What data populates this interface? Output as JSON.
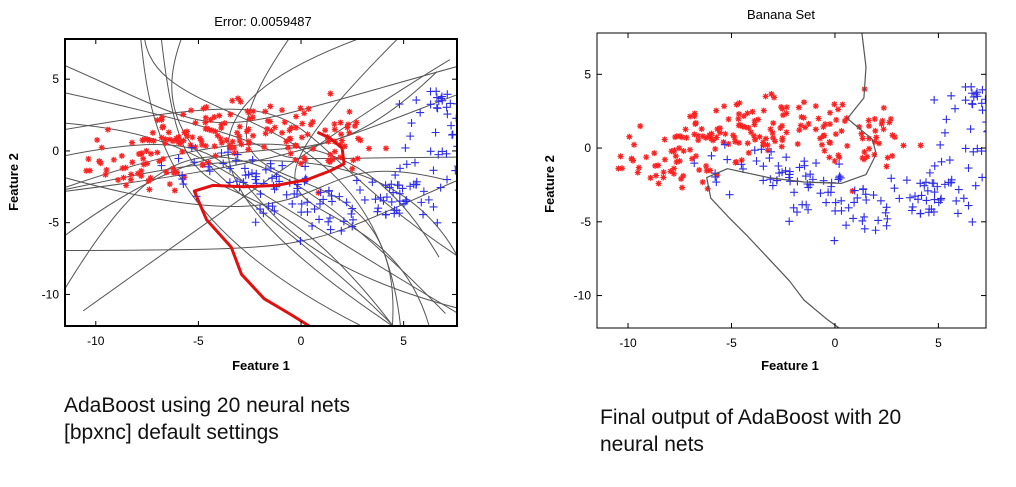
{
  "chart_data": [
    {
      "type": "scatter",
      "title": "Error: 0.0059487",
      "xlabel": "Feature 1",
      "ylabel": "Feature 2",
      "xlim": [
        -11.5,
        7.6
      ],
      "ylim": [
        -12.2,
        7.8
      ],
      "xticks": [
        -10,
        -5,
        0,
        5
      ],
      "yticks": [
        5,
        0,
        -5,
        -10
      ],
      "grid": false,
      "legend": "none",
      "series": [
        {
          "marker": "*",
          "color": "#ff2020",
          "class": "red"
        },
        {
          "marker": "+",
          "color": "#2e2ee8",
          "class": "blue"
        }
      ],
      "weak_boundaries": 20,
      "final_boundary": {
        "color": "#e01010",
        "points": [
          [
            0.8,
            1.3
          ],
          [
            1.4,
            0.9
          ],
          [
            2.0,
            0.2
          ],
          [
            2.1,
            -0.9
          ],
          [
            1.4,
            -1.4
          ],
          [
            0.3,
            -2.0
          ],
          [
            -1.2,
            -2.4
          ],
          [
            -2.8,
            -2.5
          ],
          [
            -4.3,
            -2.4
          ],
          [
            -5.2,
            -2.8
          ],
          [
            -4.6,
            -4.8
          ],
          [
            -3.4,
            -6.7
          ],
          [
            -2.9,
            -8.6
          ],
          [
            -1.8,
            -10.3
          ],
          [
            -0.5,
            -11.4
          ],
          [
            0.4,
            -12.2
          ]
        ]
      }
    },
    {
      "type": "scatter",
      "title": "Banana Set",
      "xlabel": "Feature 1",
      "ylabel": "Feature 2",
      "xlim": [
        -11.5,
        7.3
      ],
      "ylim": [
        -12.2,
        7.8
      ],
      "xticks": [
        -10,
        -5,
        0,
        5
      ],
      "yticks": [
        5,
        0,
        -5,
        -10
      ],
      "grid": false,
      "legend": "none",
      "series": [
        {
          "marker": "*",
          "color": "#ff2020",
          "class": "red"
        },
        {
          "marker": "+",
          "color": "#2e2ee8",
          "class": "blue"
        }
      ],
      "boundary": {
        "color": "#555555",
        "points": [
          [
            1.3,
            7.8
          ],
          [
            1.5,
            5.5
          ],
          [
            1.4,
            3.4
          ],
          [
            0.6,
            2.0
          ],
          [
            1.8,
            0.6
          ],
          [
            2.0,
            -0.4
          ],
          [
            1.5,
            -1.8
          ],
          [
            0.3,
            -2.4
          ],
          [
            -1.5,
            -2.3
          ],
          [
            -3.2,
            -2.0
          ],
          [
            -5.2,
            -1.4
          ],
          [
            -6.2,
            -2.0
          ],
          [
            -6.0,
            -3.4
          ],
          [
            -5.2,
            -4.6
          ],
          [
            -4.2,
            -6.0
          ],
          [
            -3.2,
            -7.5
          ],
          [
            -2.2,
            -9.0
          ],
          [
            -1.5,
            -10.3
          ],
          [
            -0.4,
            -11.6
          ],
          [
            0.2,
            -12.2
          ]
        ]
      }
    }
  ],
  "captions": {
    "left": [
      "AdaBoost using 20 neural nets",
      "[bpxnc] default settings"
    ],
    "right": [
      "Final output of AdaBoost with 20",
      "neural nets"
    ]
  }
}
